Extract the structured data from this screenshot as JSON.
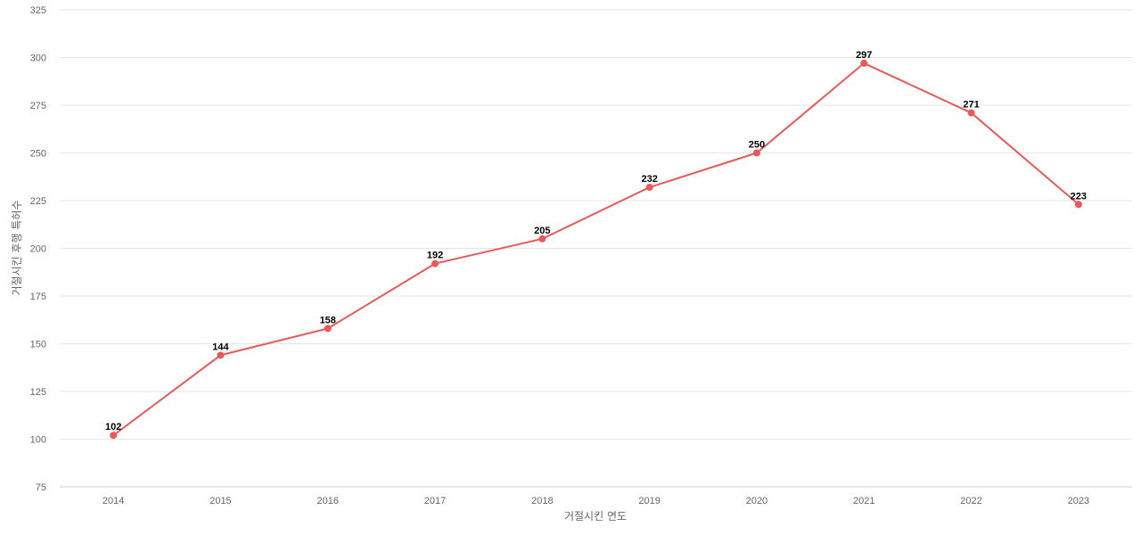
{
  "chart_data": {
    "type": "line",
    "title": "",
    "xlabel": "거절시킨 연도",
    "ylabel": "거절시킨 후행 특허수",
    "categories": [
      "2014",
      "2015",
      "2016",
      "2017",
      "2018",
      "2019",
      "2020",
      "2021",
      "2022",
      "2023"
    ],
    "series": [
      {
        "values": [
          102,
          144,
          158,
          192,
          205,
          232,
          250,
          297,
          271,
          223
        ],
        "color": "#e85a5a"
      }
    ],
    "ylim": [
      75,
      325
    ],
    "yticks": [
      75,
      100,
      125,
      150,
      175,
      200,
      225,
      250,
      275,
      300,
      325
    ],
    "grid": true,
    "data_labels": true
  }
}
